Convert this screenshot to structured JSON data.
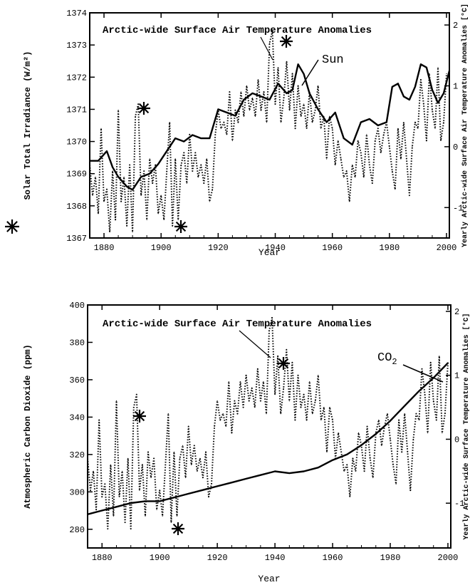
{
  "chart_data": [
    {
      "type": "line",
      "title": "Arctic-wide Surface Air Temperature Anomalies",
      "xlabel": "Year",
      "ylabel": "Solar Total Irradiance (W/m²)",
      "ylabel_right": "Yearly Arctic-wide Surface Air Temperature Anomalies [°C]",
      "xlim": [
        1875,
        2001
      ],
      "ylim": [
        1367,
        1374
      ],
      "ylim_right": [
        -1.5,
        2.2
      ],
      "x_ticks": [
        1880,
        1900,
        1920,
        1940,
        1960,
        1980,
        2000
      ],
      "y_ticks": [
        1367,
        1368,
        1369,
        1370,
        1371,
        1372,
        1373,
        1374
      ],
      "y_ticks_right": [
        -1,
        0,
        1,
        2
      ],
      "series": [
        {
          "name": "Sun",
          "axis": "left",
          "style": "solid",
          "x": [
            1875,
            1878,
            1881,
            1883,
            1885,
            1888,
            1890,
            1893,
            1896,
            1899,
            1902,
            1905,
            1908,
            1911,
            1914,
            1917,
            1920,
            1923,
            1926,
            1929,
            1932,
            1935,
            1938,
            1941,
            1944,
            1946,
            1948,
            1950,
            1952,
            1955,
            1958,
            1961,
            1964,
            1967,
            1970,
            1973,
            1976,
            1979,
            1981,
            1983,
            1985,
            1987,
            1989,
            1991,
            1993,
            1995,
            1997,
            1999,
            2001
          ],
          "y": [
            1369.4,
            1369.4,
            1369.7,
            1369.2,
            1368.9,
            1368.6,
            1368.5,
            1368.9,
            1369.0,
            1369.3,
            1369.7,
            1370.1,
            1370.0,
            1370.2,
            1370.1,
            1370.1,
            1371.0,
            1370.9,
            1370.8,
            1371.3,
            1371.5,
            1371.4,
            1371.3,
            1371.8,
            1371.5,
            1371.6,
            1372.4,
            1372.1,
            1371.5,
            1371.0,
            1370.6,
            1370.9,
            1370.1,
            1369.9,
            1370.6,
            1370.7,
            1370.5,
            1370.6,
            1371.7,
            1371.8,
            1371.4,
            1371.3,
            1371.7,
            1372.4,
            1372.3,
            1371.6,
            1371.2,
            1371.5,
            1372.2
          ]
        },
        {
          "name": "Arctic-wide Surface Air Temperature Anomalies",
          "axis": "right",
          "style": "dotted",
          "x": [
            1875,
            1876,
            1877,
            1878,
            1879,
            1880,
            1881,
            1882,
            1883,
            1884,
            1885,
            1886,
            1887,
            1888,
            1889,
            1890,
            1891,
            1892,
            1893,
            1894,
            1895,
            1896,
            1897,
            1898,
            1899,
            1900,
            1901,
            1902,
            1903,
            1904,
            1905,
            1906,
            1907,
            1908,
            1909,
            1910,
            1911,
            1912,
            1913,
            1914,
            1915,
            1916,
            1917,
            1918,
            1919,
            1920,
            1921,
            1922,
            1923,
            1924,
            1925,
            1926,
            1927,
            1928,
            1929,
            1930,
            1931,
            1932,
            1933,
            1934,
            1935,
            1936,
            1937,
            1938,
            1939,
            1940,
            1941,
            1942,
            1943,
            1944,
            1945,
            1946,
            1947,
            1948,
            1949,
            1950,
            1951,
            1952,
            1953,
            1954,
            1955,
            1956,
            1957,
            1958,
            1959,
            1960,
            1961,
            1962,
            1963,
            1964,
            1965,
            1966,
            1967,
            1968,
            1969,
            1970,
            1971,
            1972,
            1973,
            1974,
            1975,
            1976,
            1977,
            1978,
            1979,
            1980,
            1981,
            1982,
            1983,
            1984,
            1985,
            1986,
            1987,
            1988,
            1989,
            1990,
            1991,
            1992,
            1993,
            1994,
            1995,
            1996,
            1997,
            1998,
            1999,
            2000
          ],
          "y": [
            -0.3,
            -0.8,
            -0.5,
            -1.1,
            0.3,
            -0.9,
            -0.7,
            -1.4,
            -0.4,
            -1.2,
            0.6,
            -0.9,
            -0.5,
            -1.3,
            -0.3,
            -1.4,
            0.5,
            0.7,
            -0.8,
            -0.4,
            -1.2,
            -0.2,
            -0.6,
            -0.3,
            -1.1,
            -0.8,
            -1.2,
            -0.4,
            0.4,
            -1.3,
            -0.2,
            -1.2,
            -0.3,
            -0.1,
            -0.6,
            0.2,
            -0.4,
            -0.1,
            -0.5,
            -0.3,
            -0.6,
            -0.2,
            -0.9,
            -0.7,
            0.2,
            0.6,
            0.3,
            0.4,
            0.2,
            0.9,
            0.1,
            0.6,
            0.4,
            0.9,
            0.5,
            1.0,
            0.6,
            0.8,
            0.5,
            1.1,
            0.6,
            0.9,
            0.4,
            1.7,
            1.9,
            0.7,
            1.3,
            0.4,
            0.8,
            1.4,
            0.6,
            1.2,
            0.3,
            1.0,
            0.5,
            0.7,
            0.3,
            0.9,
            0.4,
            0.6,
            1.0,
            0.3,
            0.5,
            -0.2,
            0.5,
            0.3,
            -0.3,
            0.1,
            -0.2,
            -0.5,
            -0.4,
            -0.9,
            -0.3,
            -0.5,
            0.1,
            -0.1,
            -0.5,
            0.2,
            -0.3,
            -0.6,
            0.1,
            0.3,
            -0.1,
            0.2,
            0.4,
            0.0,
            -0.4,
            -0.7,
            0.3,
            -0.2,
            0.4,
            -0.2,
            -0.8,
            0.0,
            0.4,
            0.3,
            1.1,
            0.7,
            0.1,
            1.2,
            0.6,
            0.3,
            1.3,
            0.1,
            0.4,
            1.2
          ]
        }
      ],
      "annotations": [
        "Sun"
      ]
    },
    {
      "type": "line",
      "title": "Arctic-wide Surface Air Temperature Anomalies",
      "xlabel": "Year",
      "ylabel": "Atmospheric Carbon Dioxide (ppm)",
      "ylabel_right": "Yearly Arctic-wide Surface Temperature Anomalies [°C]",
      "xlim": [
        1875,
        2001
      ],
      "ylim": [
        270,
        400
      ],
      "ylim_right": [
        -1.7,
        2.1
      ],
      "x_ticks": [
        1880,
        1900,
        1920,
        1940,
        1960,
        1980,
        2000
      ],
      "y_ticks": [
        280,
        300,
        320,
        340,
        360,
        380,
        400
      ],
      "y_ticks_right": [
        -1,
        0,
        1,
        2
      ],
      "series": [
        {
          "name": "CO2",
          "axis": "left",
          "style": "solid",
          "x": [
            1875,
            1880,
            1885,
            1890,
            1895,
            1900,
            1905,
            1910,
            1915,
            1920,
            1925,
            1930,
            1935,
            1940,
            1945,
            1950,
            1955,
            1960,
            1965,
            1970,
            1975,
            1980,
            1985,
            1990,
            1995,
            2000
          ],
          "y": [
            288,
            290,
            292,
            294,
            295,
            295,
            297,
            299,
            301,
            303,
            305,
            307,
            309,
            311,
            310,
            311,
            313,
            317,
            320,
            325,
            331,
            338,
            346,
            354,
            361,
            369
          ]
        },
        {
          "name": "Arctic-wide Surface Air Temperature Anomalies",
          "axis": "right",
          "style": "dotted",
          "x": [
            1875,
            1876,
            1877,
            1878,
            1879,
            1880,
            1881,
            1882,
            1883,
            1884,
            1885,
            1886,
            1887,
            1888,
            1889,
            1890,
            1891,
            1892,
            1893,
            1894,
            1895,
            1896,
            1897,
            1898,
            1899,
            1900,
            1901,
            1902,
            1903,
            1904,
            1905,
            1906,
            1907,
            1908,
            1909,
            1910,
            1911,
            1912,
            1913,
            1914,
            1915,
            1916,
            1917,
            1918,
            1919,
            1920,
            1921,
            1922,
            1923,
            1924,
            1925,
            1926,
            1927,
            1928,
            1929,
            1930,
            1931,
            1932,
            1933,
            1934,
            1935,
            1936,
            1937,
            1938,
            1939,
            1940,
            1941,
            1942,
            1943,
            1944,
            1945,
            1946,
            1947,
            1948,
            1949,
            1950,
            1951,
            1952,
            1953,
            1954,
            1955,
            1956,
            1957,
            1958,
            1959,
            1960,
            1961,
            1962,
            1963,
            1964,
            1965,
            1966,
            1967,
            1968,
            1969,
            1970,
            1971,
            1972,
            1973,
            1974,
            1975,
            1976,
            1977,
            1978,
            1979,
            1980,
            1981,
            1982,
            1983,
            1984,
            1985,
            1986,
            1987,
            1988,
            1989,
            1990,
            1991,
            1992,
            1993,
            1994,
            1995,
            1996,
            1997,
            1998,
            1999,
            2000
          ],
          "y": [
            -0.3,
            -0.8,
            -0.5,
            -1.1,
            0.3,
            -0.9,
            -0.7,
            -1.4,
            -0.4,
            -1.2,
            0.6,
            -0.9,
            -0.5,
            -1.3,
            -0.3,
            -1.4,
            0.5,
            0.7,
            -0.8,
            -0.4,
            -1.2,
            -0.2,
            -0.6,
            -0.3,
            -1.1,
            -0.8,
            -1.2,
            -0.4,
            0.4,
            -1.3,
            -0.2,
            -1.2,
            -0.3,
            -0.1,
            -0.6,
            0.2,
            -0.4,
            -0.1,
            -0.5,
            -0.3,
            -0.6,
            -0.2,
            -0.9,
            -0.7,
            0.2,
            0.6,
            0.3,
            0.4,
            0.2,
            0.9,
            0.1,
            0.6,
            0.4,
            0.9,
            0.5,
            1.0,
            0.6,
            0.8,
            0.5,
            1.1,
            0.6,
            0.9,
            0.4,
            1.7,
            1.9,
            0.7,
            1.3,
            0.4,
            0.8,
            1.4,
            0.6,
            1.2,
            0.3,
            1.0,
            0.5,
            0.7,
            0.3,
            0.9,
            0.4,
            0.6,
            1.0,
            0.3,
            0.5,
            -0.2,
            0.5,
            0.3,
            -0.3,
            0.1,
            -0.2,
            -0.5,
            -0.4,
            -0.9,
            -0.3,
            -0.5,
            0.1,
            -0.1,
            -0.5,
            0.2,
            -0.3,
            -0.6,
            0.1,
            0.3,
            -0.1,
            0.2,
            0.4,
            0.0,
            -0.4,
            -0.7,
            0.3,
            -0.2,
            0.4,
            -0.2,
            -0.8,
            0.0,
            0.4,
            0.3,
            1.1,
            0.7,
            0.1,
            1.2,
            0.6,
            0.3,
            1.3,
            0.1,
            0.4,
            1.2
          ]
        }
      ],
      "annotations": [
        "CO2"
      ]
    }
  ]
}
